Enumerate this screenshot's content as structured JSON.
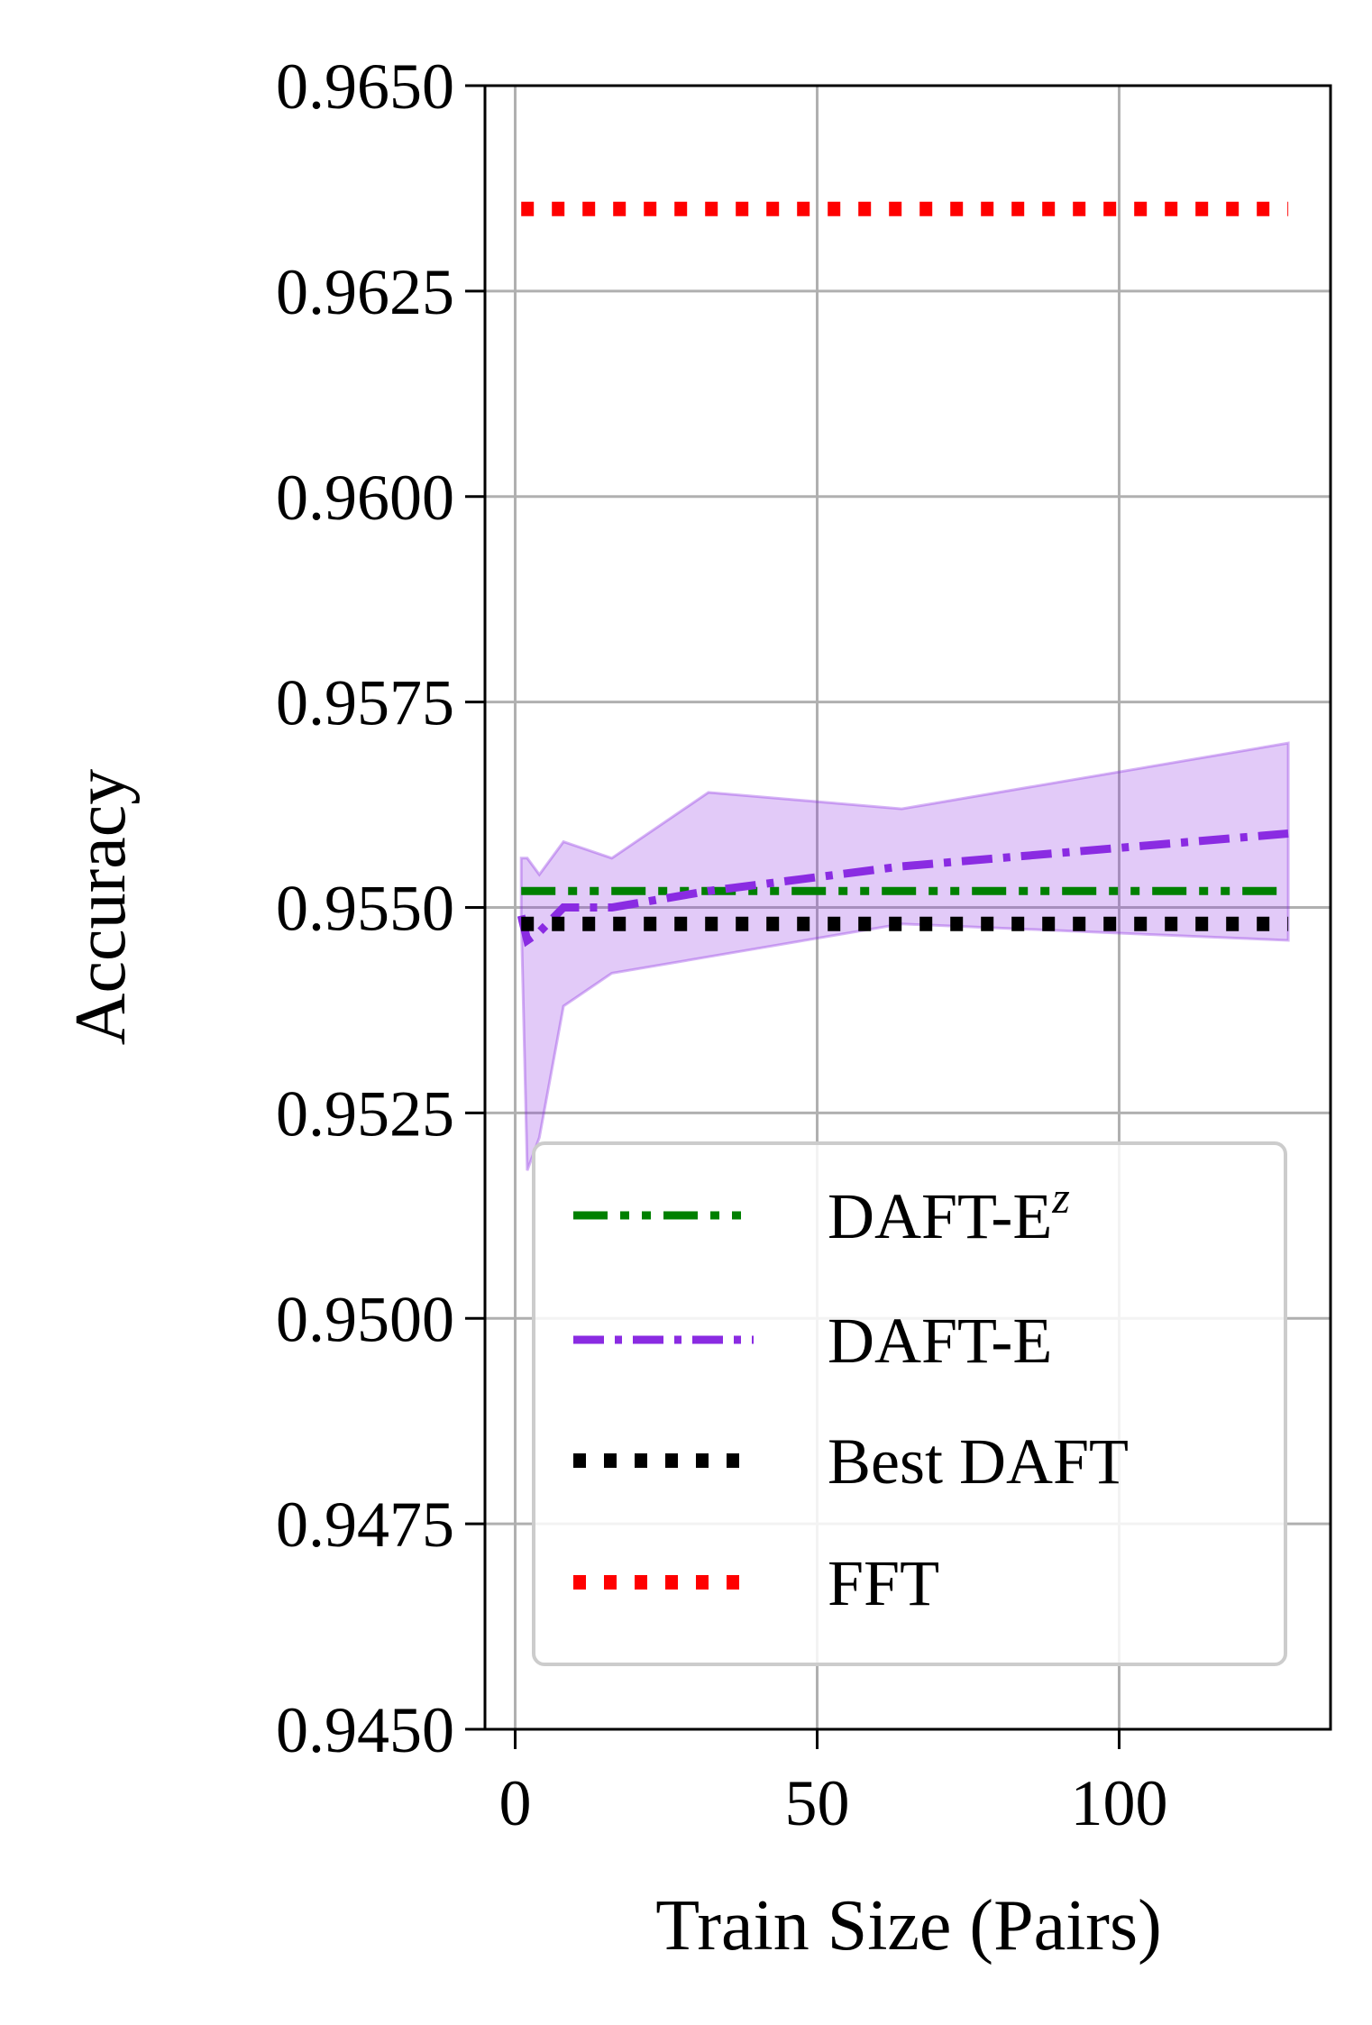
{
  "chart_data": {
    "type": "line",
    "xlabel": "Train Size (Pairs)",
    "ylabel": "Accuracy",
    "xlim": [
      -5,
      135
    ],
    "ylim": [
      0.945,
      0.965
    ],
    "x_ticks": [
      0,
      50,
      100
    ],
    "x_tick_labels": [
      "0",
      "50",
      "100"
    ],
    "y_ticks": [
      0.945,
      0.9475,
      0.95,
      0.9525,
      0.955,
      0.9575,
      0.96,
      0.9625,
      0.965
    ],
    "y_tick_labels": [
      "0.9450",
      "0.9475",
      "0.9500",
      "0.9525",
      "0.9550",
      "0.9575",
      "0.9600",
      "0.9625",
      "0.9650"
    ],
    "grid": true,
    "legend_position": "lower-right",
    "series": [
      {
        "name": "DAFT-E",
        "name_sup": "z",
        "color": "#008000",
        "style": "dash-dot-dot",
        "x": [
          1,
          128
        ],
        "y": [
          0.9552,
          0.9552
        ]
      },
      {
        "name": "DAFT-E",
        "color": "#8A2BE2",
        "style": "dash-dot",
        "x": [
          1,
          2,
          4,
          8,
          16,
          32,
          64,
          128
        ],
        "y": [
          0.9549,
          0.9546,
          0.9547,
          0.955,
          0.955,
          0.9552,
          0.9555,
          0.9559
        ],
        "band_upper": [
          0.9556,
          0.9556,
          0.9554,
          0.9558,
          0.9556,
          0.9564,
          0.9562,
          0.957
        ],
        "band_lower": [
          0.9549,
          0.9518,
          0.9522,
          0.9538,
          0.9542,
          0.9544,
          0.9548,
          0.9546
        ]
      },
      {
        "name": "Best DAFT",
        "color": "#000000",
        "style": "dotted",
        "x": [
          1,
          128
        ],
        "y": [
          0.9548,
          0.9548
        ]
      },
      {
        "name": "FFT",
        "color": "#FF0000",
        "style": "dotted",
        "x": [
          1,
          128
        ],
        "y": [
          0.9635,
          0.9635
        ]
      }
    ]
  }
}
